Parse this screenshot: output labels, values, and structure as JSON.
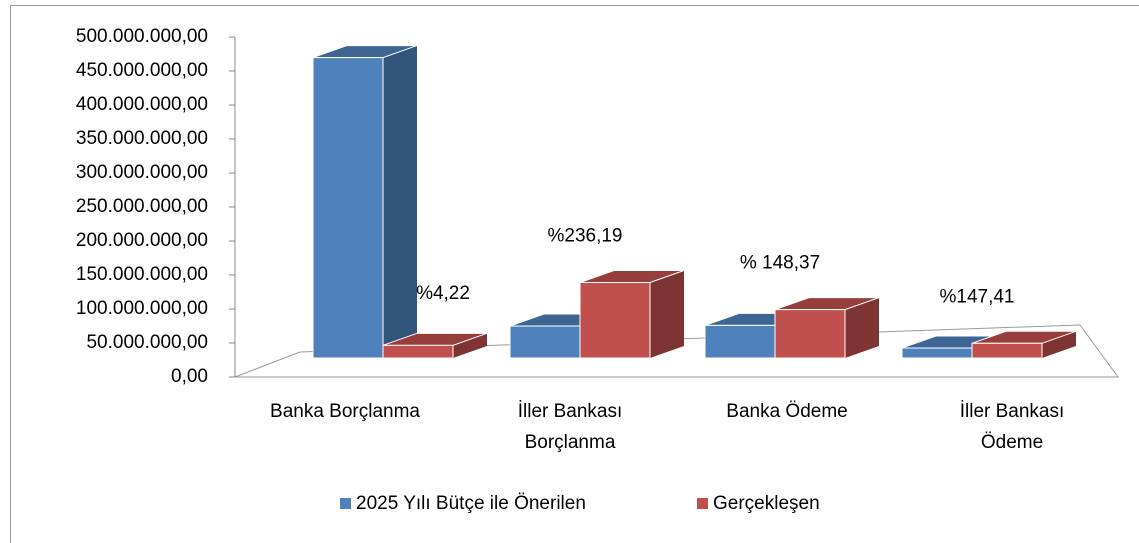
{
  "chart_data": {
    "type": "bar3d",
    "categories": [
      [
        "Banka Borçlanma"
      ],
      [
        "İller Bankası",
        "Borçlanma"
      ],
      [
        "Banka Ödeme"
      ],
      [
        "İller Bankası",
        "Ödeme"
      ]
    ],
    "series": [
      {
        "name": "2025 Yılı Bütçe ile Önerilen",
        "color": "#4f81bd",
        "values": [
          470000000,
          50000000,
          51000000,
          15600000
        ]
      },
      {
        "name": "Gerçekleşen",
        "color": "#c0504d",
        "values": [
          19834000,
          118100000,
          75700000,
          23000000
        ]
      }
    ],
    "annotations": [
      "%4,22",
      "%236,19",
      "% 148,37",
      "%147,41"
    ],
    "ylim": [
      0,
      500000000
    ],
    "yticks": [
      {
        "value": 0,
        "label": "0,00"
      },
      {
        "value": 50000000,
        "label": "50.000.000,00"
      },
      {
        "value": 100000000,
        "label": "100.000.000,00"
      },
      {
        "value": 150000000,
        "label": "150.000.000,00"
      },
      {
        "value": 200000000,
        "label": "200.000.000,00"
      },
      {
        "value": 250000000,
        "label": "250.000.000,00"
      },
      {
        "value": 300000000,
        "label": "300.000.000,00"
      },
      {
        "value": 350000000,
        "label": "350.000.000,00"
      },
      {
        "value": 400000000,
        "label": "400.000.000,00"
      },
      {
        "value": 450000000,
        "label": "450.000.000,00"
      },
      {
        "value": 500000000,
        "label": "500.000.000,00"
      }
    ],
    "legend": "bottom"
  }
}
